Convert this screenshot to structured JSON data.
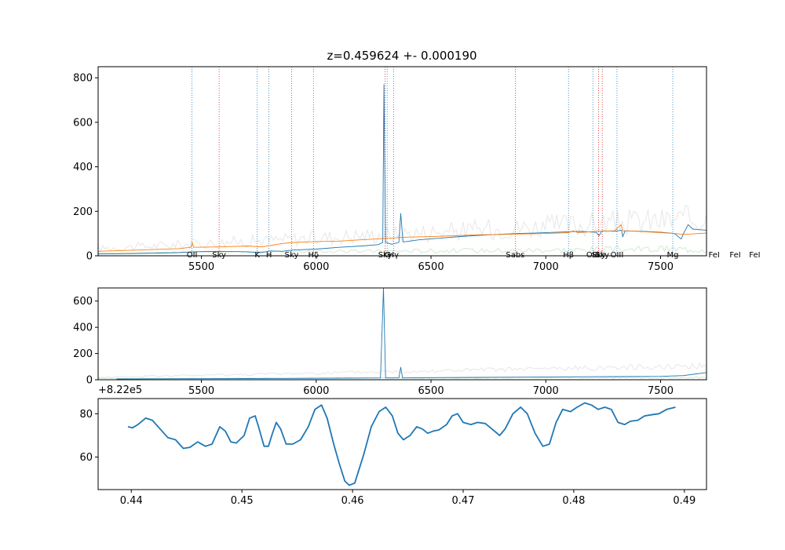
{
  "chart_data": [
    {
      "type": "line",
      "title": "z=0.459624 +- 0.000190",
      "xlim": [
        5050,
        7700
      ],
      "ylim": [
        0,
        850
      ],
      "xticks": [
        5500,
        6000,
        6500,
        7000,
        7500
      ],
      "yticks": [
        0,
        200,
        400,
        600,
        800
      ],
      "series": [
        {
          "color": "#1f77b4",
          "points": [
            [
              5050,
              8
            ],
            [
              5200,
              10
            ],
            [
              5400,
              14
            ],
            [
              5460,
              18
            ],
            [
              5580,
              20
            ],
            [
              5700,
              18
            ],
            [
              5760,
              14
            ],
            [
              5800,
              22
            ],
            [
              5850,
              20
            ],
            [
              5900,
              26
            ],
            [
              6000,
              30
            ],
            [
              6100,
              38
            ],
            [
              6200,
              44
            ],
            [
              6270,
              50
            ],
            [
              6290,
              60
            ],
            [
              6295,
              770
            ],
            [
              6302,
              60
            ],
            [
              6330,
              52
            ],
            [
              6360,
              60
            ],
            [
              6368,
              190
            ],
            [
              6378,
              62
            ],
            [
              6450,
              72
            ],
            [
              6550,
              80
            ],
            [
              6650,
              88
            ],
            [
              6750,
              94
            ],
            [
              6880,
              100
            ],
            [
              6950,
              102
            ],
            [
              7050,
              106
            ],
            [
              7150,
              110
            ],
            [
              7220,
              105
            ],
            [
              7232,
              90
            ],
            [
              7245,
              112
            ],
            [
              7300,
              110
            ],
            [
              7330,
              115
            ],
            [
              7335,
              85
            ],
            [
              7345,
              112
            ],
            [
              7420,
              110
            ],
            [
              7500,
              106
            ],
            [
              7560,
              100
            ],
            [
              7590,
              75
            ],
            [
              7600,
              100
            ],
            [
              7620,
              140
            ],
            [
              7640,
              120
            ],
            [
              7700,
              115
            ]
          ]
        },
        {
          "color": "#ff7f0e",
          "points": [
            [
              5050,
              20
            ],
            [
              5200,
              25
            ],
            [
              5400,
              32
            ],
            [
              5455,
              38
            ],
            [
              5460,
              60
            ],
            [
              5466,
              38
            ],
            [
              5580,
              40
            ],
            [
              5700,
              44
            ],
            [
              5760,
              40
            ],
            [
              5800,
              46
            ],
            [
              5850,
              55
            ],
            [
              5900,
              60
            ],
            [
              6000,
              64
            ],
            [
              6100,
              66
            ],
            [
              6200,
              72
            ],
            [
              6300,
              78
            ],
            [
              6400,
              84
            ],
            [
              6500,
              86
            ],
            [
              6600,
              90
            ],
            [
              6700,
              94
            ],
            [
              6800,
              96
            ],
            [
              6900,
              98
            ],
            [
              7000,
              100
            ],
            [
              7100,
              104
            ],
            [
              7120,
              112
            ],
            [
              7140,
              104
            ],
            [
              7220,
              110
            ],
            [
              7300,
              112
            ],
            [
              7328,
              140
            ],
            [
              7336,
              112
            ],
            [
              7400,
              110
            ],
            [
              7500,
              104
            ],
            [
              7560,
              100
            ],
            [
              7600,
              96
            ],
            [
              7700,
              102
            ]
          ]
        }
      ],
      "annotations": [
        {
          "label": "OII",
          "x": 5459,
          "color": "#1f77b4"
        },
        {
          "label": "Sky",
          "x": 5577,
          "color": "#d62728"
        },
        {
          "label": "K",
          "x": 5743,
          "color": "#1f77b4"
        },
        {
          "label": "H",
          "x": 5794,
          "color": "#1f77b4"
        },
        {
          "label": "Sky",
          "x": 5893,
          "color": "#d62728"
        },
        {
          "label": "Hδ",
          "x": 5988,
          "color": "#1f77b4"
        },
        {
          "label": "Sky",
          "x": 6300,
          "color": "#d62728"
        },
        {
          "label": "G",
          "x": 6309,
          "color": "#1f77b4"
        },
        {
          "label": "Hγ",
          "x": 6337,
          "color": "#1f77b4"
        },
        {
          "label": "Sabs",
          "x": 6867,
          "color": "#d62728"
        },
        {
          "label": "Hβ",
          "x": 7099,
          "color": "#1f77b4"
        },
        {
          "label": "OIII",
          "x": 7205,
          "color": "#1f77b4"
        },
        {
          "label": "Sky",
          "x": 7230,
          "color": "#d62728"
        },
        {
          "label": "Sky",
          "x": 7246,
          "color": "#d62728"
        },
        {
          "label": "OIII",
          "x": 7310,
          "color": "#1f77b4"
        },
        {
          "label": "Mg",
          "x": 7553,
          "color": "#1f77b4"
        },
        {
          "label": "FeI",
          "x": 7733,
          "color": "#1f77b4"
        },
        {
          "label": "FeI",
          "x": 7825,
          "color": "#1f77b4"
        },
        {
          "label": "FeI",
          "x": 7910,
          "color": "#1f77b4"
        }
      ]
    },
    {
      "type": "line",
      "xlim": [
        5050,
        7700
      ],
      "ylim": [
        0,
        700
      ],
      "xticks": [
        5500,
        6000,
        6500,
        7000,
        7500
      ],
      "yticks": [
        0,
        200,
        400,
        600
      ],
      "series": [
        {
          "color": "#1f77b4",
          "points": [
            [
              5130,
              6
            ],
            [
              5300,
              7
            ],
            [
              5500,
              8
            ],
            [
              5700,
              9
            ],
            [
              5900,
              10
            ],
            [
              6100,
              12
            ],
            [
              6280,
              14
            ],
            [
              6293,
              700
            ],
            [
              6302,
              14
            ],
            [
              6360,
              14
            ],
            [
              6368,
              95
            ],
            [
              6376,
              14
            ],
            [
              6500,
              16
            ],
            [
              6700,
              18
            ],
            [
              6900,
              20
            ],
            [
              7100,
              22
            ],
            [
              7300,
              24
            ],
            [
              7500,
              26
            ],
            [
              7600,
              32
            ],
            [
              7700,
              55
            ]
          ]
        }
      ]
    },
    {
      "type": "line",
      "offset_label": "+8.22e5",
      "xlim": [
        0.437,
        0.492
      ],
      "ylim": [
        45,
        87
      ],
      "xticks": [
        0.44,
        0.45,
        0.46,
        0.47,
        0.48,
        0.49
      ],
      "xtick_labels": [
        "0.44",
        "0.45",
        "0.46",
        "0.47",
        "0.48",
        "0.49"
      ],
      "yticks": [
        60,
        80
      ],
      "series": [
        {
          "color": "#1f77b4",
          "points": [
            [
              0.4397,
              74
            ],
            [
              0.4401,
              73.5
            ],
            [
              0.4406,
              75
            ],
            [
              0.4413,
              78
            ],
            [
              0.4419,
              77
            ],
            [
              0.4426,
              73
            ],
            [
              0.4433,
              69
            ],
            [
              0.444,
              68
            ],
            [
              0.4447,
              64
            ],
            [
              0.4453,
              64.5
            ],
            [
              0.446,
              67
            ],
            [
              0.4467,
              65
            ],
            [
              0.4473,
              66
            ],
            [
              0.448,
              74
            ],
            [
              0.4485,
              72
            ],
            [
              0.449,
              67
            ],
            [
              0.4495,
              66.5
            ],
            [
              0.4502,
              70
            ],
            [
              0.4507,
              78
            ],
            [
              0.4512,
              79
            ],
            [
              0.4515,
              74
            ],
            [
              0.452,
              65
            ],
            [
              0.4524,
              65
            ],
            [
              0.4527,
              70
            ],
            [
              0.4531,
              76
            ],
            [
              0.4535,
              73
            ],
            [
              0.454,
              66
            ],
            [
              0.4546,
              66
            ],
            [
              0.4553,
              68
            ],
            [
              0.456,
              74
            ],
            [
              0.4566,
              82
            ],
            [
              0.4572,
              84
            ],
            [
              0.4577,
              78
            ],
            [
              0.4583,
              66
            ],
            [
              0.4588,
              57
            ],
            [
              0.4593,
              49
            ],
            [
              0.4597,
              47
            ],
            [
              0.4602,
              48
            ],
            [
              0.461,
              61
            ],
            [
              0.4617,
              74
            ],
            [
              0.4624,
              81
            ],
            [
              0.463,
              83
            ],
            [
              0.4636,
              79
            ],
            [
              0.4641,
              71
            ],
            [
              0.4646,
              68
            ],
            [
              0.4652,
              70
            ],
            [
              0.4658,
              74
            ],
            [
              0.4663,
              73
            ],
            [
              0.4668,
              71
            ],
            [
              0.4673,
              72
            ],
            [
              0.4678,
              72.5
            ],
            [
              0.4685,
              75
            ],
            [
              0.469,
              79
            ],
            [
              0.4695,
              80
            ],
            [
              0.47,
              76
            ],
            [
              0.4707,
              75
            ],
            [
              0.4713,
              76
            ],
            [
              0.472,
              75.5
            ],
            [
              0.4726,
              73
            ],
            [
              0.4733,
              70
            ],
            [
              0.4738,
              73
            ],
            [
              0.4745,
              80
            ],
            [
              0.4752,
              83
            ],
            [
              0.4758,
              80
            ],
            [
              0.4765,
              71
            ],
            [
              0.4772,
              65
            ],
            [
              0.4778,
              66
            ],
            [
              0.4784,
              76
            ],
            [
              0.479,
              82
            ],
            [
              0.4797,
              81
            ],
            [
              0.4803,
              83
            ],
            [
              0.481,
              85
            ],
            [
              0.4816,
              84
            ],
            [
              0.4822,
              82
            ],
            [
              0.4828,
              83
            ],
            [
              0.4834,
              82
            ],
            [
              0.484,
              76
            ],
            [
              0.4846,
              75
            ],
            [
              0.4851,
              76.5
            ],
            [
              0.4858,
              77
            ],
            [
              0.4864,
              79
            ],
            [
              0.487,
              79.5
            ],
            [
              0.4877,
              80
            ],
            [
              0.4884,
              82
            ],
            [
              0.4892,
              83
            ]
          ]
        }
      ]
    }
  ]
}
